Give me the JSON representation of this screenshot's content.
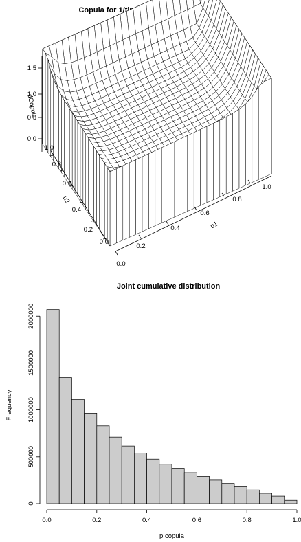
{
  "chart_data": [
    {
      "type": "surface",
      "title": "Copula for 1/time and similarity for  2007",
      "xlabel": "u1",
      "ylabel": "u2",
      "zlabel": "dCopula",
      "x_ticks": [
        "0.0",
        "0.2",
        "0.4",
        "0.6",
        "0.8",
        "1.0"
      ],
      "y_ticks": [
        "0.0",
        "0.2",
        "0.4",
        "0.6",
        "0.8",
        "1.0"
      ],
      "z_ticks": [
        "0.0",
        "0.5",
        "1.0",
        "1.5"
      ],
      "xlim": [
        0,
        1
      ],
      "ylim": [
        0,
        1
      ],
      "zlim": [
        0,
        1.7
      ],
      "grid_n": 25,
      "description": "Copula density surface rising sharply toward the (1,1) corner (peak ~1.7) and toward (0,0); near-flat plateau around 0.7-1.0 elsewhere"
    },
    {
      "type": "bar",
      "title": "Joint cumulative distribution",
      "xlabel": "p copula",
      "ylabel": "Frequency",
      "x_ticks": [
        "0.0",
        "0.2",
        "0.4",
        "0.6",
        "0.8",
        "1.0"
      ],
      "y_ticks": [
        "0",
        "500000",
        "1000000",
        "1500000",
        "2000000"
      ],
      "xlim": [
        0,
        1
      ],
      "ylim": [
        0,
        2075000
      ],
      "bin_edges": [
        0.0,
        0.05,
        0.1,
        0.15,
        0.2,
        0.25,
        0.3,
        0.35,
        0.4,
        0.45,
        0.5,
        0.55,
        0.6,
        0.65,
        0.7,
        0.75,
        0.8,
        0.85,
        0.9,
        0.95,
        1.0
      ],
      "values": [
        2070000,
        1345000,
        1110000,
        965000,
        830000,
        710000,
        615000,
        540000,
        475000,
        420000,
        370000,
        330000,
        290000,
        250000,
        215000,
        180000,
        145000,
        110000,
        80000,
        35000
      ],
      "bar_color": "#cccccc"
    }
  ]
}
